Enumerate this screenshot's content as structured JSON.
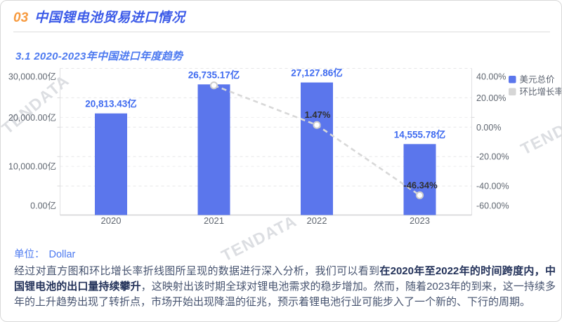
{
  "header": {
    "number": "03",
    "title": "中国锂电池贸易进口情况"
  },
  "section": {
    "title": "3.1 2020-2023年中国进口年度趋势"
  },
  "chart_data": {
    "type": "bar",
    "title": "3.1 2020-2023年中国进口年度趋势",
    "categories": [
      "2020",
      "2021",
      "2022",
      "2023"
    ],
    "series": [
      {
        "name": "美元总价",
        "type": "bar",
        "axis": "left",
        "unit": "亿",
        "values": [
          20813.43,
          26735.17,
          27127.86,
          14555.78
        ],
        "labels": [
          "20,813.43亿",
          "26,735.17亿",
          "27,127.86亿",
          "14,555.78亿"
        ],
        "color": "#5b76ec"
      },
      {
        "name": "环比增长率",
        "type": "line",
        "axis": "right",
        "unit": "%",
        "values": [
          null,
          28.45,
          1.47,
          -46.34
        ],
        "labels": [
          null,
          null,
          "1.47%",
          "-46.34%"
        ],
        "color": "#d8d8d8"
      }
    ],
    "left_axis": {
      "min": 0,
      "max": 30000,
      "ticks": [
        {
          "value": 30000,
          "label": "30,000.00亿"
        },
        {
          "value": 20000,
          "label": "20,000.00亿"
        },
        {
          "value": 10000,
          "label": "10,000.00亿"
        },
        {
          "value": 0,
          "label": "0.00亿"
        }
      ]
    },
    "right_axis": {
      "min": -60,
      "max": 40,
      "ticks": [
        {
          "value": 40,
          "label": "40.00%"
        },
        {
          "value": 20,
          "label": "20.00%"
        },
        {
          "value": 0,
          "label": "0.00%"
        },
        {
          "value": -20,
          "label": "-20.00%"
        },
        {
          "value": -40,
          "label": "-40.00%"
        },
        {
          "value": -60,
          "label": "-60.00%"
        }
      ]
    },
    "legend": [
      {
        "label": "美元总价",
        "color": "#5b76ec"
      },
      {
        "label": "环比增长率",
        "color": "#d6d6d6"
      }
    ],
    "grid": true,
    "legend_position": "top-right"
  },
  "unit_line": {
    "label": "单位：",
    "value": "Dollar"
  },
  "analysis": {
    "segments": [
      {
        "text": "经过对直方图和环比增长率折线图所呈现的数据进行深入分析，我们可以看到",
        "bold": false
      },
      {
        "text": "在2020年至2022年的时间跨度内，中国锂电池的出口量持续攀升",
        "bold": true
      },
      {
        "text": "，这映射出该时期全球对锂电池需求的稳步增加。然而，随着2023年的到来，这一持续多年的上升趋势出现了转折点，市场开始出现降温的征兆，预示着锂电池行业可能步入了一个新的、下行的周期。",
        "bold": false
      }
    ]
  },
  "watermark": {
    "text": "TENDATA"
  },
  "colors": {
    "accent_orange": "#f79a3e",
    "title_blue": "#3b5ae8",
    "subtitle_blue": "#4d7af0",
    "bar_blue": "#5b76ec",
    "value_label_blue": "#3e6af0",
    "line_gray": "#d8d8d8",
    "point_label_dark": "#303030",
    "axis_text": "#5f6670"
  }
}
